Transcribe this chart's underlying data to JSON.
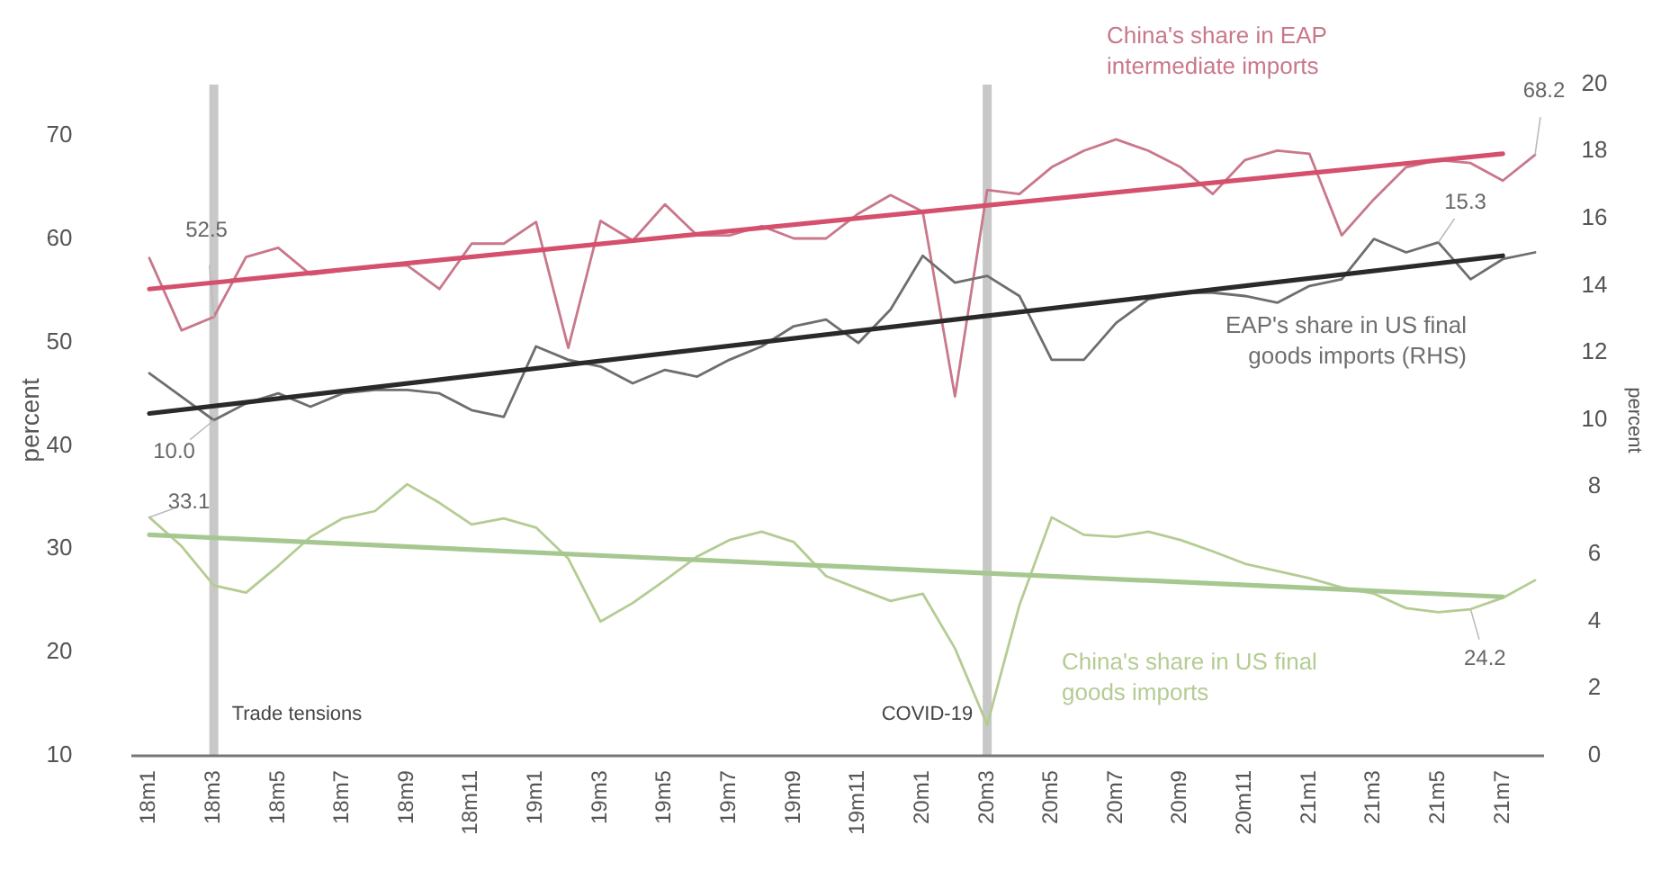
{
  "chart_data": {
    "type": "line",
    "ylabel": "percent",
    "y2label": "percent",
    "categories": [
      "18m1",
      null,
      "18m3",
      null,
      "18m5",
      null,
      "18m7",
      null,
      "18m9",
      null,
      "18m11",
      null,
      "19m1",
      null,
      "19m3",
      null,
      "19m5",
      null,
      "19m7",
      null,
      "19m9",
      null,
      "19m11",
      null,
      "20m1",
      null,
      "20m3",
      null,
      "20m5",
      null,
      "20m7",
      null,
      "20m9",
      null,
      "20m11",
      null,
      "21m1",
      null,
      "21m3",
      null,
      "21m5",
      null,
      "21m7",
      null
    ],
    "ylim": [
      10,
      75
    ],
    "yticks": [
      10,
      20,
      30,
      40,
      50,
      60,
      70
    ],
    "y2lim": [
      0,
      20
    ],
    "y2ticks": [
      0,
      2,
      4,
      6,
      8,
      10,
      12,
      14,
      16,
      18,
      20
    ],
    "series": [
      {
        "name": "China's share in EAP intermediate imports",
        "color": "#c8788a",
        "values": [
          58.2,
          51.2,
          52.5,
          58.3,
          59.2,
          56.6,
          57.0,
          57.3,
          57.5,
          55.2,
          59.6,
          59.6,
          61.7,
          49.5,
          61.8,
          59.9,
          63.4,
          60.4,
          60.4,
          61.3,
          60.1,
          60.1,
          62.5,
          64.3,
          62.7,
          44.8,
          64.8,
          64.4,
          67.0,
          68.6,
          69.7,
          68.6,
          67.0,
          64.4,
          67.7,
          68.6,
          68.3,
          60.4,
          63.9,
          67.0,
          67.7,
          67.4,
          65.7,
          68.2
        ],
        "value_labels": [
          null,
          null,
          "52.5",
          null,
          null,
          null,
          null,
          null,
          null,
          null,
          null,
          null,
          null,
          null,
          null,
          null,
          null,
          null,
          null,
          null,
          null,
          null,
          null,
          null,
          null,
          null,
          null,
          null,
          null,
          null,
          null,
          null,
          null,
          null,
          null,
          null,
          null,
          null,
          null,
          null,
          null,
          null,
          null,
          "68.2"
        ]
      },
      {
        "name": "EAP's share in US final goods imports (RHS)",
        "color": "#6e6e6e",
        "axis": "y2",
        "values": [
          11.4,
          10.7,
          10.0,
          10.5,
          10.8,
          10.4,
          10.8,
          10.9,
          10.9,
          10.8,
          10.3,
          10.1,
          12.2,
          11.8,
          11.6,
          11.1,
          11.5,
          11.3,
          11.8,
          12.2,
          12.8,
          13.0,
          12.3,
          13.3,
          14.9,
          14.1,
          14.3,
          13.7,
          11.8,
          11.8,
          12.9,
          13.6,
          13.8,
          13.8,
          13.7,
          13.5,
          14.0,
          14.2,
          15.4,
          15.0,
          15.3,
          14.2,
          14.8,
          15.0
        ],
        "value_labels": [
          null,
          null,
          "10.0",
          null,
          null,
          null,
          null,
          null,
          null,
          null,
          null,
          null,
          null,
          null,
          null,
          null,
          null,
          null,
          null,
          null,
          null,
          null,
          null,
          null,
          null,
          null,
          null,
          null,
          null,
          null,
          null,
          null,
          null,
          null,
          null,
          null,
          null,
          null,
          null,
          null,
          "15.3",
          null,
          null,
          null
        ]
      },
      {
        "name": "China's share in US final goods imports",
        "color": "#b4cc94",
        "values": [
          33.1,
          30.3,
          26.5,
          25.8,
          28.4,
          31.2,
          33.0,
          33.7,
          36.3,
          34.5,
          32.4,
          33.0,
          32.1,
          29.1,
          23.0,
          24.8,
          27.0,
          29.3,
          30.9,
          31.7,
          30.7,
          27.4,
          26.2,
          25.0,
          25.7,
          20.4,
          13.0,
          24.6,
          33.1,
          31.4,
          31.2,
          31.7,
          30.9,
          29.8,
          28.6,
          27.9,
          27.2,
          26.3,
          25.7,
          24.3,
          23.9,
          24.2,
          25.3,
          27.0
        ],
        "value_labels": [
          "33.1",
          null,
          null,
          null,
          null,
          null,
          null,
          null,
          null,
          null,
          null,
          null,
          null,
          null,
          null,
          null,
          null,
          null,
          null,
          null,
          null,
          null,
          null,
          null,
          null,
          null,
          null,
          null,
          null,
          null,
          null,
          null,
          null,
          null,
          null,
          null,
          null,
          null,
          null,
          null,
          null,
          "24.2",
          null,
          null
        ]
      },
      {
        "type": "line",
        "color": "#d4506c",
        "x": [
          "18m1",
          "21m7"
        ],
        "values": [
          55.2,
          68.3
        ]
      },
      {
        "type": "line",
        "color": "#2a2a2a",
        "axis": "y2",
        "x": [
          "18m1",
          "21m7"
        ],
        "values": [
          10.2,
          14.9
        ]
      },
      {
        "type": "line",
        "color": "#a6c890",
        "x": [
          "18m1",
          "21m7"
        ],
        "values": [
          31.4,
          25.4
        ]
      }
    ],
    "ref_lines": [
      {
        "axis": "x",
        "value": "18m3",
        "label": "Trade tensions",
        "color": "#c8c8c8"
      },
      {
        "axis": "x",
        "value": "20m3",
        "label": "COVID-19",
        "color": "#c8c8c8"
      }
    ]
  }
}
